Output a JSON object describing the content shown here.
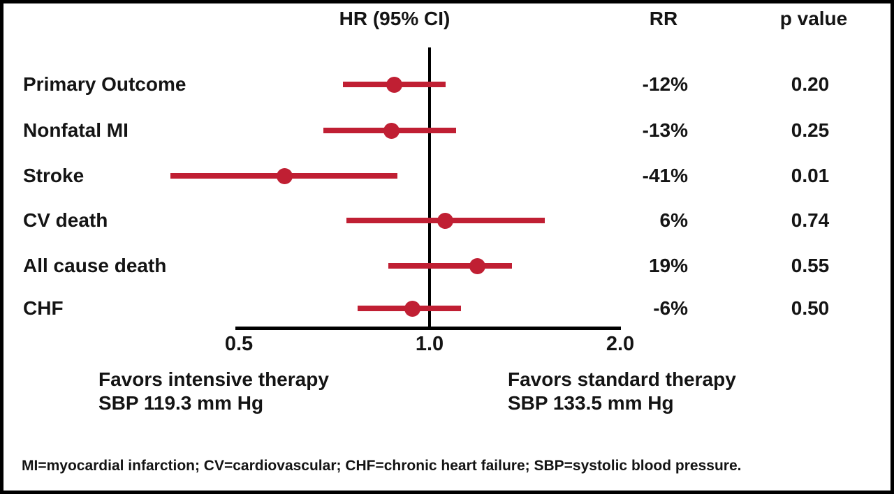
{
  "header": {
    "effect_col": "HR (95% CI)",
    "rr_col": "RR",
    "p_col": "p value"
  },
  "chart_data": {
    "type": "forest",
    "x_scale": "log",
    "x_ticks": [
      0.5,
      1.0,
      2.0
    ],
    "x_tick_labels": [
      "0.5",
      "1.0",
      "2.0"
    ],
    "x_range": [
      0.35,
      2.0
    ],
    "reference_line": 1.0,
    "effect_measure": "HR (95% CI)",
    "rows": [
      {
        "label": "Primary Outcome",
        "hr": 0.88,
        "ci_low": 0.73,
        "ci_high": 1.06,
        "rr": "-12%",
        "p": "0.20"
      },
      {
        "label": "Nonfatal MI",
        "hr": 0.87,
        "ci_low": 0.68,
        "ci_high": 1.1,
        "rr": "-13%",
        "p": "0.25"
      },
      {
        "label": "Stroke",
        "hr": 0.59,
        "ci_low": 0.39,
        "ci_high": 0.89,
        "rr": "-41%",
        "p": "0.01"
      },
      {
        "label": "CV death",
        "hr": 1.06,
        "ci_low": 0.74,
        "ci_high": 1.52,
        "rr": "6%",
        "p": "0.74"
      },
      {
        "label": "All cause death",
        "hr": 1.19,
        "ci_low": 0.86,
        "ci_high": 1.35,
        "rr": "19%",
        "p": "0.55"
      },
      {
        "label": "CHF",
        "hr": 0.94,
        "ci_low": 0.77,
        "ci_high": 1.12,
        "rr": "-6%",
        "p": "0.50"
      }
    ],
    "marker_color": "#c01f33",
    "axis_color": "#000000",
    "legend_position": "none",
    "grid": false
  },
  "annotations": {
    "left_line1": "Favors intensive therapy",
    "left_line2": "SBP 119.3 mm Hg",
    "right_line1": "Favors standard therapy",
    "right_line2": "SBP 133.5 mm Hg"
  },
  "footnote": "MI=myocardial infarction; CV=cardiovascular; CHF=chronic heart failure; SBP=systolic blood pressure."
}
